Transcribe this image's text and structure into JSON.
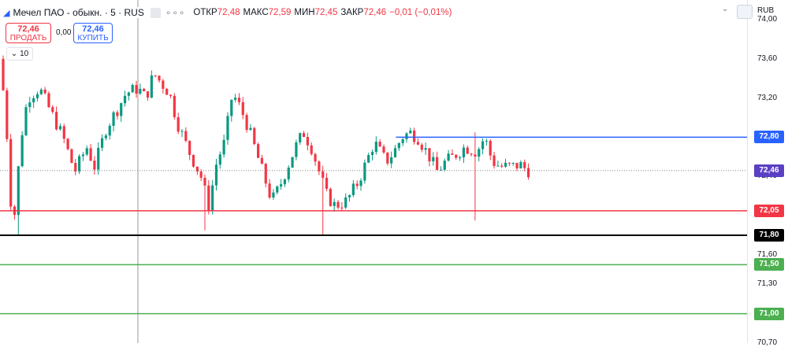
{
  "header": {
    "title": "Мечел ПАО - обыкн. · 5 · RUS",
    "ohlc": [
      {
        "label": "ОТКР",
        "value": "72,48"
      },
      {
        "label": "МАКС",
        "value": "72,59"
      },
      {
        "label": "МИН",
        "value": "72,45"
      },
      {
        "label": "ЗАКР",
        "value": "72,46"
      },
      {
        "label": "",
        "value": "−0,01 (−0,01%)"
      }
    ],
    "more": "∘∘∘"
  },
  "trade": {
    "sell_price": "72,46",
    "sell_label": "ПРОДАТЬ",
    "spread": "0,00",
    "buy_price": "72,46",
    "buy_label": "КУПИТЬ"
  },
  "interval_label": "10",
  "currency_label": "RUB",
  "colors": {
    "up": "#089981",
    "down": "#f23645",
    "blue": "#2962ff",
    "green": "#4caf50",
    "black": "#000000",
    "current": "#5b3fc4"
  },
  "chart_data": {
    "type": "candlestick",
    "ylim": [
      70.7,
      74.2
    ],
    "y_ticks": [
      {
        "v": 74.0,
        "label": "74,00"
      },
      {
        "v": 73.6,
        "label": "73,60"
      },
      {
        "v": 73.2,
        "label": "73,20"
      },
      {
        "v": 72.4,
        "label": "72,40"
      },
      {
        "v": 71.6,
        "label": "71,60"
      },
      {
        "v": 71.3,
        "label": "71,30"
      },
      {
        "v": 70.7,
        "label": "70,70"
      }
    ],
    "levels": [
      {
        "name": "level-7280",
        "price": 72.8,
        "label": "72,80",
        "color": "#2962ff",
        "from": 0.53
      },
      {
        "name": "level-7205",
        "price": 72.05,
        "label": "72,05",
        "color": "#f23645",
        "from": 0
      },
      {
        "name": "level-7180",
        "price": 71.8,
        "label": "71,80",
        "color": "#000000",
        "from": 0
      },
      {
        "name": "level-7150",
        "price": 71.5,
        "label": "71,50",
        "color": "#4caf50",
        "from": 0
      },
      {
        "name": "level-7100",
        "price": 71.0,
        "label": "71,00",
        "color": "#4caf50",
        "from": 0
      }
    ],
    "current": {
      "price": 72.46,
      "label": "72,46"
    },
    "waypoints": [
      [
        0,
        73.6
      ],
      [
        5,
        73.2
      ],
      [
        10,
        72.7
      ],
      [
        15,
        71.95
      ],
      [
        20,
        72.05
      ],
      [
        25,
        72.7
      ],
      [
        35,
        73.2
      ],
      [
        50,
        73.3
      ],
      [
        65,
        73.05
      ],
      [
        80,
        72.8
      ],
      [
        95,
        72.45
      ],
      [
        110,
        72.7
      ],
      [
        120,
        72.5
      ],
      [
        135,
        72.9
      ],
      [
        150,
        73.1
      ],
      [
        160,
        73.25
      ],
      [
        175,
        73.3
      ],
      [
        185,
        73.2
      ],
      [
        195,
        73.45
      ],
      [
        205,
        73.35
      ],
      [
        215,
        73.25
      ],
      [
        225,
        72.95
      ],
      [
        240,
        72.65
      ],
      [
        255,
        72.4
      ],
      [
        265,
        72.1
      ],
      [
        275,
        72.55
      ],
      [
        285,
        72.75
      ],
      [
        295,
        73.25
      ],
      [
        305,
        73.1
      ],
      [
        315,
        72.9
      ],
      [
        325,
        72.65
      ],
      [
        335,
        72.4
      ],
      [
        345,
        72.15
      ],
      [
        355,
        72.3
      ],
      [
        365,
        72.5
      ],
      [
        375,
        72.7
      ],
      [
        385,
        72.85
      ],
      [
        395,
        72.7
      ],
      [
        405,
        72.45
      ],
      [
        415,
        72.2
      ],
      [
        425,
        72.1
      ],
      [
        440,
        72.15
      ],
      [
        455,
        72.35
      ],
      [
        465,
        72.55
      ],
      [
        475,
        72.75
      ],
      [
        490,
        72.55
      ],
      [
        500,
        72.65
      ],
      [
        510,
        72.8
      ],
      [
        520,
        72.85
      ],
      [
        530,
        72.8
      ],
      [
        545,
        72.6
      ],
      [
        555,
        72.45
      ],
      [
        565,
        72.55
      ],
      [
        575,
        72.6
      ],
      [
        590,
        72.7
      ],
      [
        605,
        72.65
      ],
      [
        615,
        72.8
      ],
      [
        625,
        72.55
      ],
      [
        635,
        72.5
      ],
      [
        650,
        72.5
      ],
      [
        660,
        72.52
      ],
      [
        670,
        72.46
      ]
    ],
    "spikes": [
      {
        "index": 4,
        "low": 71.8
      },
      {
        "index": 53,
        "low": 71.85
      },
      {
        "index": 84,
        "low": 71.8
      },
      {
        "index": 124,
        "high": 72.85,
        "low": 71.95
      }
    ]
  }
}
